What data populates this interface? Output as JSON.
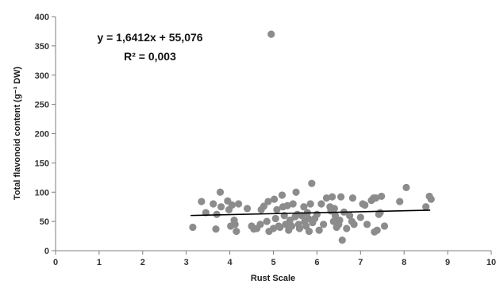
{
  "chart_data": {
    "type": "scatter",
    "title": "",
    "xlabel": "Rust Scale",
    "ylabel": "Total flavonoid content (g⁻¹ DW)",
    "xlim": [
      0,
      10
    ],
    "ylim": [
      0,
      400
    ],
    "xticks": [
      "0",
      "1",
      "2",
      "3",
      "4",
      "5",
      "6",
      "7",
      "8",
      "9",
      "10"
    ],
    "yticks": [
      "0",
      "50",
      "100",
      "150",
      "200",
      "250",
      "300",
      "350",
      "400"
    ],
    "grid": false,
    "legend": "none",
    "marker_color": "#8c8c8c",
    "trendline": {
      "type": "linear",
      "slope": 1.6412,
      "intercept": 55.076,
      "x_range": [
        3.1,
        8.6
      ],
      "color": "#000000",
      "equation": "y = 1,6412x + 55,076",
      "r_squared": "R² = 0,003"
    },
    "points": [
      {
        "x": 3.15,
        "y": 40
      },
      {
        "x": 3.35,
        "y": 84
      },
      {
        "x": 3.45,
        "y": 65
      },
      {
        "x": 3.62,
        "y": 80
      },
      {
        "x": 3.68,
        "y": 37
      },
      {
        "x": 3.7,
        "y": 62
      },
      {
        "x": 3.78,
        "y": 100
      },
      {
        "x": 3.8,
        "y": 75
      },
      {
        "x": 3.95,
        "y": 85
      },
      {
        "x": 3.98,
        "y": 70
      },
      {
        "x": 4.02,
        "y": 42
      },
      {
        "x": 4.05,
        "y": 78
      },
      {
        "x": 4.1,
        "y": 52
      },
      {
        "x": 4.12,
        "y": 45
      },
      {
        "x": 4.15,
        "y": 33
      },
      {
        "x": 4.2,
        "y": 80
      },
      {
        "x": 4.4,
        "y": 72
      },
      {
        "x": 4.5,
        "y": 42
      },
      {
        "x": 4.55,
        "y": 37
      },
      {
        "x": 4.62,
        "y": 38
      },
      {
        "x": 4.7,
        "y": 45
      },
      {
        "x": 4.72,
        "y": 70
      },
      {
        "x": 4.78,
        "y": 76
      },
      {
        "x": 4.85,
        "y": 50
      },
      {
        "x": 4.88,
        "y": 84
      },
      {
        "x": 4.9,
        "y": 33
      },
      {
        "x": 4.95,
        "y": 370
      },
      {
        "x": 5.0,
        "y": 38
      },
      {
        "x": 5.02,
        "y": 88
      },
      {
        "x": 5.05,
        "y": 55
      },
      {
        "x": 5.08,
        "y": 70
      },
      {
        "x": 5.12,
        "y": 42
      },
      {
        "x": 5.15,
        "y": 40
      },
      {
        "x": 5.2,
        "y": 95
      },
      {
        "x": 5.22,
        "y": 75
      },
      {
        "x": 5.25,
        "y": 60
      },
      {
        "x": 5.28,
        "y": 45
      },
      {
        "x": 5.32,
        "y": 77
      },
      {
        "x": 5.35,
        "y": 35
      },
      {
        "x": 5.38,
        "y": 52
      },
      {
        "x": 5.42,
        "y": 42
      },
      {
        "x": 5.45,
        "y": 80
      },
      {
        "x": 5.5,
        "y": 58
      },
      {
        "x": 5.52,
        "y": 100
      },
      {
        "x": 5.55,
        "y": 62
      },
      {
        "x": 5.58,
        "y": 45
      },
      {
        "x": 5.6,
        "y": 38
      },
      {
        "x": 5.65,
        "y": 60
      },
      {
        "x": 5.7,
        "y": 75
      },
      {
        "x": 5.72,
        "y": 50
      },
      {
        "x": 5.75,
        "y": 42
      },
      {
        "x": 5.78,
        "y": 65
      },
      {
        "x": 5.8,
        "y": 55
      },
      {
        "x": 5.82,
        "y": 33
      },
      {
        "x": 5.85,
        "y": 80
      },
      {
        "x": 5.88,
        "y": 115
      },
      {
        "x": 5.9,
        "y": 48
      },
      {
        "x": 5.95,
        "y": 55
      },
      {
        "x": 6.0,
        "y": 62
      },
      {
        "x": 6.05,
        "y": 35
      },
      {
        "x": 6.1,
        "y": 80
      },
      {
        "x": 6.15,
        "y": 45
      },
      {
        "x": 6.22,
        "y": 90
      },
      {
        "x": 6.3,
        "y": 75
      },
      {
        "x": 6.32,
        "y": 68
      },
      {
        "x": 6.35,
        "y": 92
      },
      {
        "x": 6.38,
        "y": 50
      },
      {
        "x": 6.4,
        "y": 72
      },
      {
        "x": 6.42,
        "y": 60
      },
      {
        "x": 6.45,
        "y": 40
      },
      {
        "x": 6.5,
        "y": 45
      },
      {
        "x": 6.52,
        "y": 52
      },
      {
        "x": 6.55,
        "y": 92
      },
      {
        "x": 6.58,
        "y": 18
      },
      {
        "x": 6.62,
        "y": 66
      },
      {
        "x": 6.68,
        "y": 38
      },
      {
        "x": 6.75,
        "y": 60
      },
      {
        "x": 6.8,
        "y": 50
      },
      {
        "x": 6.82,
        "y": 90
      },
      {
        "x": 6.85,
        "y": 45
      },
      {
        "x": 7.0,
        "y": 57
      },
      {
        "x": 7.05,
        "y": 80
      },
      {
        "x": 7.1,
        "y": 78
      },
      {
        "x": 7.15,
        "y": 45
      },
      {
        "x": 7.25,
        "y": 86
      },
      {
        "x": 7.3,
        "y": 90
      },
      {
        "x": 7.32,
        "y": 32
      },
      {
        "x": 7.35,
        "y": 90
      },
      {
        "x": 7.38,
        "y": 35
      },
      {
        "x": 7.42,
        "y": 62
      },
      {
        "x": 7.45,
        "y": 65
      },
      {
        "x": 7.48,
        "y": 93
      },
      {
        "x": 7.55,
        "y": 42
      },
      {
        "x": 7.9,
        "y": 84
      },
      {
        "x": 8.05,
        "y": 108
      },
      {
        "x": 8.5,
        "y": 75
      },
      {
        "x": 8.58,
        "y": 93
      },
      {
        "x": 8.62,
        "y": 88
      }
    ]
  }
}
